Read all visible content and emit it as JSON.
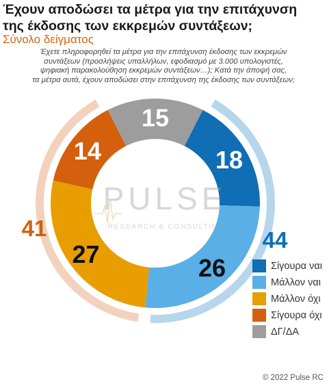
{
  "title_line1": "Έχουν αποδώσει τα μέτρα για την επιτάχυνση",
  "title_line2": "της έκδοσης των εκκρεμών συντάξεων;",
  "subtitle": "Σύνολο δείγματος",
  "question_lines": [
    "Έχετε πληροφορηθεί τα μέτρα για την επιτάχυνση έκδοσης των εκκρεμών",
    "συντάξεων (προσλήψεις υπαλλήλων, εφοδιασμό με 3.000 υπολογιστές,",
    "ψηφιακή παρακολούθηση εκκρεμών συντάξεων…); Κατά την άποψή σας,",
    "τα μέτρα αυτά, έχουν αποδώσει στην επιτάχυνση της έκδοσης των συντάξεων;"
  ],
  "watermark": {
    "main": "PULSE",
    "sub": "RESEARCH & CONSULTING"
  },
  "copyright": "© 2022 Pulse RC",
  "chart_data": {
    "type": "pie",
    "donut": true,
    "categories": [
      "Σίγουρα ναι",
      "Μάλλον ναι",
      "Μάλλον όχι",
      "Σίγουρα όχι",
      "ΔΓ/ΔΑ"
    ],
    "values": [
      18,
      26,
      27,
      14,
      15
    ],
    "colors": [
      "#0f6eb4",
      "#59afe6",
      "#e89e00",
      "#d45f0c",
      "#9d9d9d"
    ],
    "value_text_colors": [
      "#ffffff",
      "#111111",
      "#111111",
      "#ffffff",
      "#ffffff"
    ],
    "groups": [
      {
        "value": 44,
        "color": "#b6d6ec",
        "text_color": "#0f6eb4",
        "categories": [
          "Σίγουρα ναι",
          "Μάλλον ναι"
        ]
      },
      {
        "value": 41,
        "color": "#f3d2bd",
        "text_color": "#d45f0c",
        "categories": [
          "Μάλλον όχι",
          "Σίγουρα όχι"
        ]
      }
    ],
    "legend_position": "right"
  }
}
